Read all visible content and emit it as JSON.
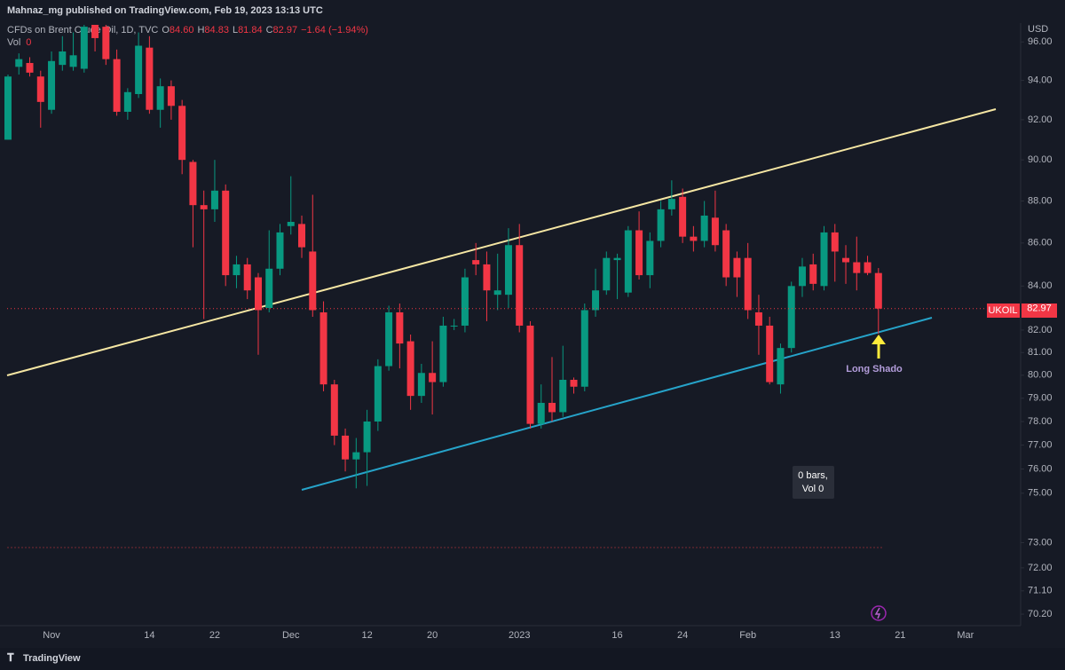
{
  "publisher": "Mahnaz_mg published on TradingView.com, Feb 19, 2023 13:13 UTC",
  "footer": "TradingView",
  "chart_data": {
    "type": "candlestick",
    "title": "CFDs on Brent Crude Oil, 1D, TVC",
    "legend": {
      "open_label": "O",
      "open": "84.60",
      "high_label": "H",
      "high": "84.83",
      "low_label": "L",
      "low": "81.84",
      "close_label": "C",
      "close": "82.97",
      "change": "−1.64 (−1.94%)",
      "volume_label": "Vol",
      "volume": "0"
    },
    "y_unit": "USD",
    "symbol_tag": "UKOIL",
    "annotation": "Long Shado",
    "info_box": [
      "0 bars,",
      "Vol 0"
    ],
    "up_color": "#089981",
    "down_color": "#f23645",
    "log_scale": true,
    "grid": false,
    "categories": [
      null,
      null,
      null,
      null,
      "Nov",
      null,
      null,
      null,
      null,
      null,
      null,
      null,
      null,
      "14",
      null,
      null,
      null,
      null,
      null,
      "22",
      null,
      null,
      null,
      null,
      null,
      null,
      "Dec",
      null,
      null,
      null,
      null,
      null,
      null,
      "12",
      null,
      null,
      null,
      null,
      null,
      "20",
      null,
      null,
      null,
      null,
      null,
      null,
      null,
      "2023",
      null,
      null,
      null,
      null,
      null,
      null,
      null,
      null,
      "16",
      null,
      null,
      null,
      null,
      null,
      "24",
      null,
      null,
      null,
      null,
      null,
      "Feb",
      null,
      null,
      null,
      null,
      null,
      null,
      null,
      "13",
      null,
      null,
      null,
      null,
      null,
      "21",
      null,
      null,
      null,
      null,
      null,
      "Mar",
      null,
      null,
      null,
      null
    ],
    "open": [
      91,
      94.7,
      94.9,
      94.2,
      92.5,
      94.8,
      94.7,
      94.6,
      96.9,
      96.8,
      95.1,
      92.4,
      93.3,
      95.7,
      92.5,
      93.7,
      92.7,
      89.9,
      87.8,
      87.6,
      88.5,
      84.5,
      85.0,
      84.4,
      83.0,
      84.8,
      86.8,
      86.9,
      85.6,
      82.8,
      79.6,
      77.4,
      76.4,
      76.7,
      78.0,
      80.4,
      82.8,
      81.5,
      79.1,
      80.1,
      79.7,
      82.2,
      82.2,
      85.2,
      85.0,
      83.6,
      83.6,
      85.9,
      82.2,
      77.9,
      78.8,
      78.4,
      79.8,
      79.5,
      82.9,
      83.8,
      85.2,
      83.7,
      86.6,
      84.5,
      86.1,
      87.6,
      88.2,
      86.3,
      86.1,
      87.2,
      86.6,
      85.3,
      85.3,
      82.8,
      82.2,
      79.6,
      81.2,
      84.0,
      85.0,
      84.0,
      86.5,
      85.3,
      85.1,
      85.1,
      84.6,
      null,
      null,
      null,
      null,
      null,
      null,
      null,
      null,
      null,
      null,
      null,
      null
    ],
    "high": [
      94.3,
      95.4,
      95.2,
      94.5,
      95.5,
      96.3,
      96.5,
      96.9,
      96.9,
      96.9,
      95.6,
      93.6,
      96.5,
      96.3,
      94.1,
      94.0,
      93.0,
      90.0,
      88.5,
      90.0,
      88.8,
      85.4,
      85.3,
      84.6,
      86.6,
      86.9,
      89.2,
      87.3,
      88.3,
      83.3,
      79.8,
      77.7,
      77.3,
      78.5,
      80.7,
      83.1,
      83.2,
      81.8,
      80.5,
      81.5,
      82.6,
      82.5,
      84.8,
      86.0,
      85.6,
      85.5,
      86.7,
      86.9,
      82.4,
      79.6,
      80.8,
      81.3,
      79.9,
      83.2,
      84.8,
      85.6,
      85.5,
      86.8,
      87.5,
      86.5,
      88.0,
      89.0,
      88.6,
      86.8,
      88.0,
      88.5,
      86.9,
      85.6,
      86.0,
      83.6,
      82.6,
      81.4,
      84.2,
      85.3,
      85.5,
      86.8,
      86.9,
      85.9,
      86.3,
      85.4,
      84.83,
      null,
      null,
      null,
      null,
      null,
      null,
      null,
      null,
      null,
      null,
      null,
      null
    ],
    "low": [
      91.0,
      94.3,
      94.2,
      91.6,
      92.3,
      94.5,
      94.5,
      94.4,
      95.5,
      94.8,
      92.2,
      92.0,
      93.1,
      92.3,
      91.6,
      92.0,
      89.3,
      85.8,
      82.5,
      87.0,
      84.0,
      83.9,
      83.4,
      80.9,
      82.8,
      84.5,
      86.4,
      85.3,
      82.6,
      79.3,
      77.0,
      75.9,
      75.2,
      75.3,
      77.6,
      80.2,
      80.3,
      78.5,
      78.8,
      78.3,
      79.5,
      82.0,
      81.9,
      84.5,
      82.4,
      82.9,
      83.0,
      81.9,
      77.7,
      77.7,
      78.0,
      78.2,
      79.2,
      79.3,
      82.6,
      83.6,
      83.4,
      83.5,
      84.3,
      83.9,
      85.8,
      87.3,
      86.0,
      85.6,
      85.8,
      85.6,
      84.0,
      83.5,
      82.5,
      80.9,
      79.6,
      79.2,
      81.0,
      83.5,
      83.8,
      83.8,
      84.2,
      84.1,
      83.8,
      84.5,
      81.84,
      null,
      null,
      null,
      null,
      null,
      null,
      null,
      null,
      null,
      null,
      null,
      null
    ],
    "close": [
      94.2,
      95.1,
      94.4,
      92.9,
      95.0,
      95.5,
      95.3,
      96.8,
      96.2,
      95.1,
      92.4,
      93.4,
      95.8,
      92.5,
      93.7,
      92.7,
      90.0,
      87.8,
      87.6,
      88.5,
      84.5,
      85.0,
      83.8,
      82.9,
      84.8,
      86.5,
      87.0,
      85.8,
      82.9,
      79.6,
      77.4,
      76.4,
      76.7,
      78.0,
      80.4,
      82.8,
      81.4,
      79.1,
      80.1,
      79.7,
      82.2,
      82.2,
      84.4,
      85.0,
      83.8,
      83.8,
      85.9,
      82.2,
      77.9,
      78.8,
      78.4,
      79.8,
      79.5,
      82.9,
      83.8,
      85.3,
      85.3,
      86.6,
      84.5,
      86.1,
      87.6,
      88.1,
      86.3,
      86.1,
      87.3,
      85.9,
      84.4,
      84.4,
      82.9,
      82.2,
      79.7,
      81.2,
      84.0,
      84.9,
      84.1,
      86.5,
      85.6,
      85.1,
      84.6,
      84.6,
      82.97,
      null,
      null,
      null,
      null,
      null,
      null,
      null,
      null,
      null,
      null,
      null,
      null
    ],
    "ylim": [
      69.76,
      96.9
    ],
    "yticks": [
      {
        "value": 96,
        "label": "96.00"
      },
      {
        "value": 94,
        "label": "94.00"
      },
      {
        "value": 92,
        "label": "92.00"
      },
      {
        "value": 90,
        "label": "90.00"
      },
      {
        "value": 88,
        "label": "88.00"
      },
      {
        "value": 86,
        "label": "86.00"
      },
      {
        "value": 84,
        "label": "84.00"
      },
      {
        "value": 82,
        "label": "82.00"
      },
      {
        "value": 81,
        "label": "81.00"
      },
      {
        "value": 80,
        "label": "80.00"
      },
      {
        "value": 79,
        "label": "79.00"
      },
      {
        "value": 78,
        "label": "78.00"
      },
      {
        "value": 77,
        "label": "77.00"
      },
      {
        "value": 76,
        "label": "76.00"
      },
      {
        "value": 75,
        "label": "75.00"
      },
      {
        "value": 73,
        "label": "73.00"
      },
      {
        "value": 72,
        "label": "72.00"
      },
      {
        "value": 71.1,
        "label": "71.10"
      },
      {
        "value": 70.2,
        "label": "70.20"
      }
    ]
  }
}
